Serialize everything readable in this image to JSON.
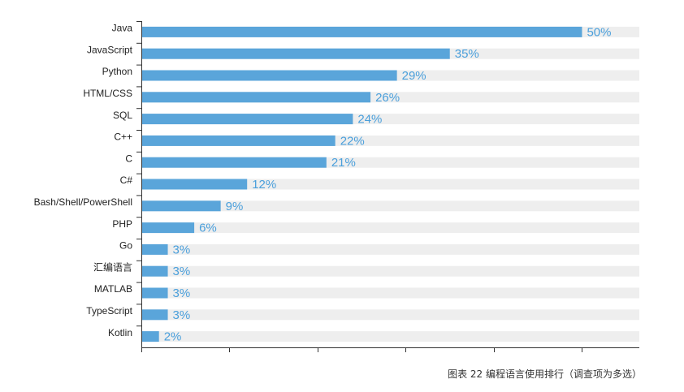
{
  "chart_data": {
    "type": "bar",
    "orientation": "horizontal",
    "categories": [
      "Java",
      "JavaScript",
      "Python",
      "HTML/CSS",
      "SQL",
      "C++",
      "C",
      "C#",
      "Bash/Shell/PowerShell",
      "PHP",
      "Go",
      "汇编语言",
      "MATLAB",
      "TypeScript",
      "Kotlin"
    ],
    "values": [
      50,
      35,
      29,
      26,
      24,
      22,
      21,
      12,
      9,
      6,
      3,
      3,
      3,
      3,
      2
    ],
    "value_labels": [
      "50%",
      "35%",
      "29%",
      "26%",
      "24%",
      "22%",
      "21%",
      "12%",
      "9%",
      "6%",
      "3%",
      "3%",
      "3%",
      "3%",
      "2%"
    ],
    "xlim": [
      0,
      56.5
    ],
    "x_ticks": [
      0,
      10,
      20,
      30,
      40,
      50
    ],
    "title": "",
    "xlabel": "",
    "ylabel": "",
    "caption": "图表 22  编程语言使用排行（调查项为多选）",
    "grid": false,
    "legend": "none",
    "colors": {
      "bar": "#5aa5da",
      "track": "#eeeeee",
      "value_label": "#4a9fdb",
      "axis": "#333333",
      "text": "#222222"
    }
  }
}
